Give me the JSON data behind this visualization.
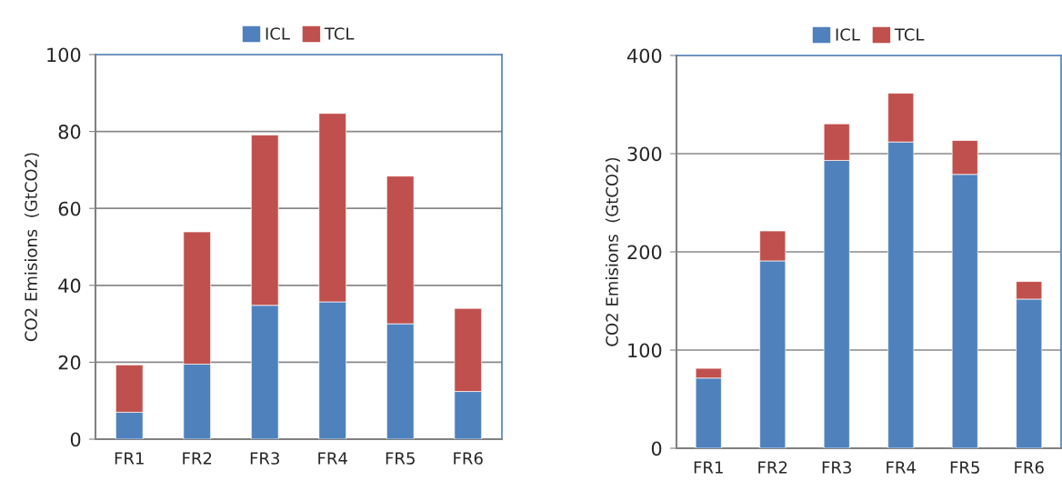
{
  "chart_data": [
    {
      "type": "bar",
      "stacked": true,
      "categories": [
        "FR1",
        "FR2",
        "FR3",
        "FR4",
        "FR5",
        "FR6"
      ],
      "ylabel": "CO2 Emisions  (GtCO2)",
      "ylim": [
        0,
        100
      ],
      "yticks": [
        0,
        20,
        40,
        60,
        80,
        100
      ],
      "grid": "y",
      "legend": "top",
      "series": [
        {
          "name": "ICL",
          "color": "#4f81bd",
          "values": [
            7,
            19.5,
            34.8,
            35.7,
            30,
            12.4
          ]
        },
        {
          "name": "TCL",
          "color": "#c0504d",
          "values": [
            12.3,
            34.4,
            44.3,
            49,
            38.4,
            21.6
          ]
        }
      ]
    },
    {
      "type": "bar",
      "stacked": true,
      "categories": [
        "FR1",
        "FR2",
        "FR3",
        "FR4",
        "FR5",
        "FR6"
      ],
      "ylabel": "CO2 Emisions  (GtCO2)",
      "ylim": [
        0,
        400
      ],
      "yticks": [
        0,
        100,
        200,
        300,
        400
      ],
      "grid": "y",
      "legend": "top",
      "series": [
        {
          "name": "ICL",
          "color": "#4f81bd",
          "values": [
            71.5,
            190.8,
            293.1,
            311.9,
            278.9,
            151.9
          ]
        },
        {
          "name": "TCL",
          "color": "#c0504d",
          "values": [
            9.9,
            30.5,
            37.3,
            49.6,
            34.5,
            17.9
          ]
        }
      ]
    }
  ]
}
